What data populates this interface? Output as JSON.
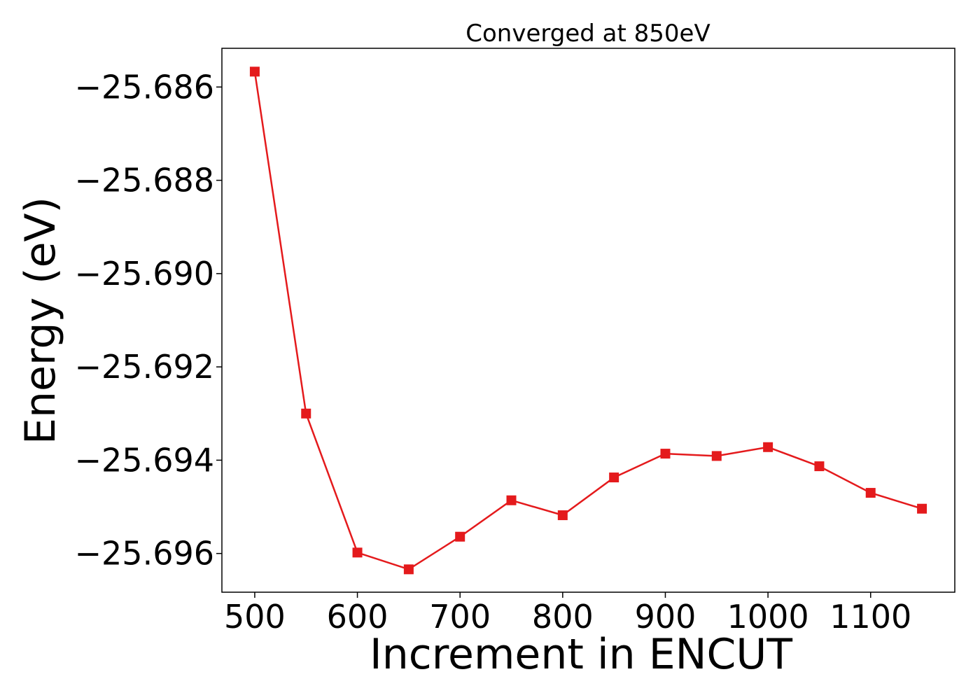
{
  "chart_data": {
    "type": "line",
    "title": "Converged at 850eV",
    "xlabel": "Increment in ENCUT",
    "ylabel": "Energy (eV)",
    "xlim": [
      468,
      1182
    ],
    "ylim": [
      -25.69683,
      -25.68517
    ],
    "xticks": [
      500,
      600,
      700,
      800,
      900,
      1000,
      1100
    ],
    "xtick_labels": [
      "500",
      "600",
      "700",
      "800",
      "900",
      "1000",
      "1100"
    ],
    "yticks": [
      -25.686,
      -25.688,
      -25.69,
      -25.692,
      -25.694,
      -25.696
    ],
    "ytick_labels": [
      "−25.686",
      "−25.688",
      "−25.690",
      "−25.692",
      "−25.694",
      "−25.696"
    ],
    "grid": false,
    "legend": "none",
    "series": [
      {
        "color": "#e41a1c",
        "marker": "square",
        "x": [
          500,
          550,
          600,
          650,
          700,
          750,
          800,
          850,
          900,
          950,
          1000,
          1050,
          1100,
          1150
        ],
        "y": [
          -25.68567,
          -25.693,
          -25.69598,
          -25.69634,
          -25.69564,
          -25.69486,
          -25.69518,
          -25.69437,
          -25.69386,
          -25.69391,
          -25.69372,
          -25.69413,
          -25.6947,
          -25.69504
        ]
      }
    ]
  }
}
